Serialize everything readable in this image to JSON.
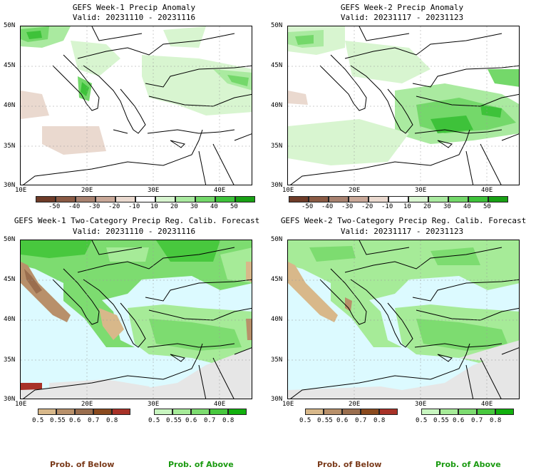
{
  "panels": [
    {
      "title": "GEFS Week-1 Precip Anomaly",
      "valid": "Valid: 20231110 - 20231116"
    },
    {
      "title": "GEFS Week-2 Precip Anomaly",
      "valid": "Valid: 20231117 - 20231123"
    },
    {
      "title": "GEFS Week-1 Two-Category Precip Reg. Calib. Forecast",
      "valid": "Valid: 20231110 - 20231116"
    },
    {
      "title": "GEFS Week-2 Two-Category Precip Reg. Calib. Forecast",
      "valid": "Valid: 20231117 - 20231123"
    }
  ],
  "axes": {
    "lat_labels": [
      "50N",
      "45N",
      "40N",
      "35N",
      "30N"
    ],
    "lon_labels": [
      "10E",
      "20E",
      "30E",
      "40E"
    ]
  },
  "anomaly_colorbar": {
    "labels": [
      "-50",
      "-40",
      "-30",
      "-20",
      "-10",
      "10",
      "20",
      "30",
      "40",
      "50"
    ],
    "colors": [
      "#6e3b28",
      "#8a5a44",
      "#a88270",
      "#c9a898",
      "#ead9cf",
      "#ffffff",
      "#d8f5d0",
      "#aaeaa0",
      "#74d86a",
      "#3ec23a",
      "#18a014"
    ]
  },
  "below_colorbar": {
    "labels": [
      "0.5",
      "0.55",
      "0.6",
      "0.7",
      "0.8"
    ],
    "colors": [
      "#d8b88a",
      "#b8906a",
      "#9a6e4e",
      "#8a4a1e",
      "#a83228"
    ]
  },
  "above_colorbar": {
    "labels": [
      "0.5",
      "0.55",
      "0.6",
      "0.7",
      "0.8"
    ],
    "colors": [
      "#c8f5c0",
      "#a6eb98",
      "#7ddc70",
      "#48c83e",
      "#12b00e"
    ]
  },
  "colors": {
    "sea": "#dcfaff",
    "dry": "#e6e6e6",
    "coast": "#000000"
  },
  "footer": {
    "below": "Prob. of Below",
    "above": "Prob. of Above",
    "below_color": "#7a3a1a",
    "above_color": "#1a9a10"
  }
}
